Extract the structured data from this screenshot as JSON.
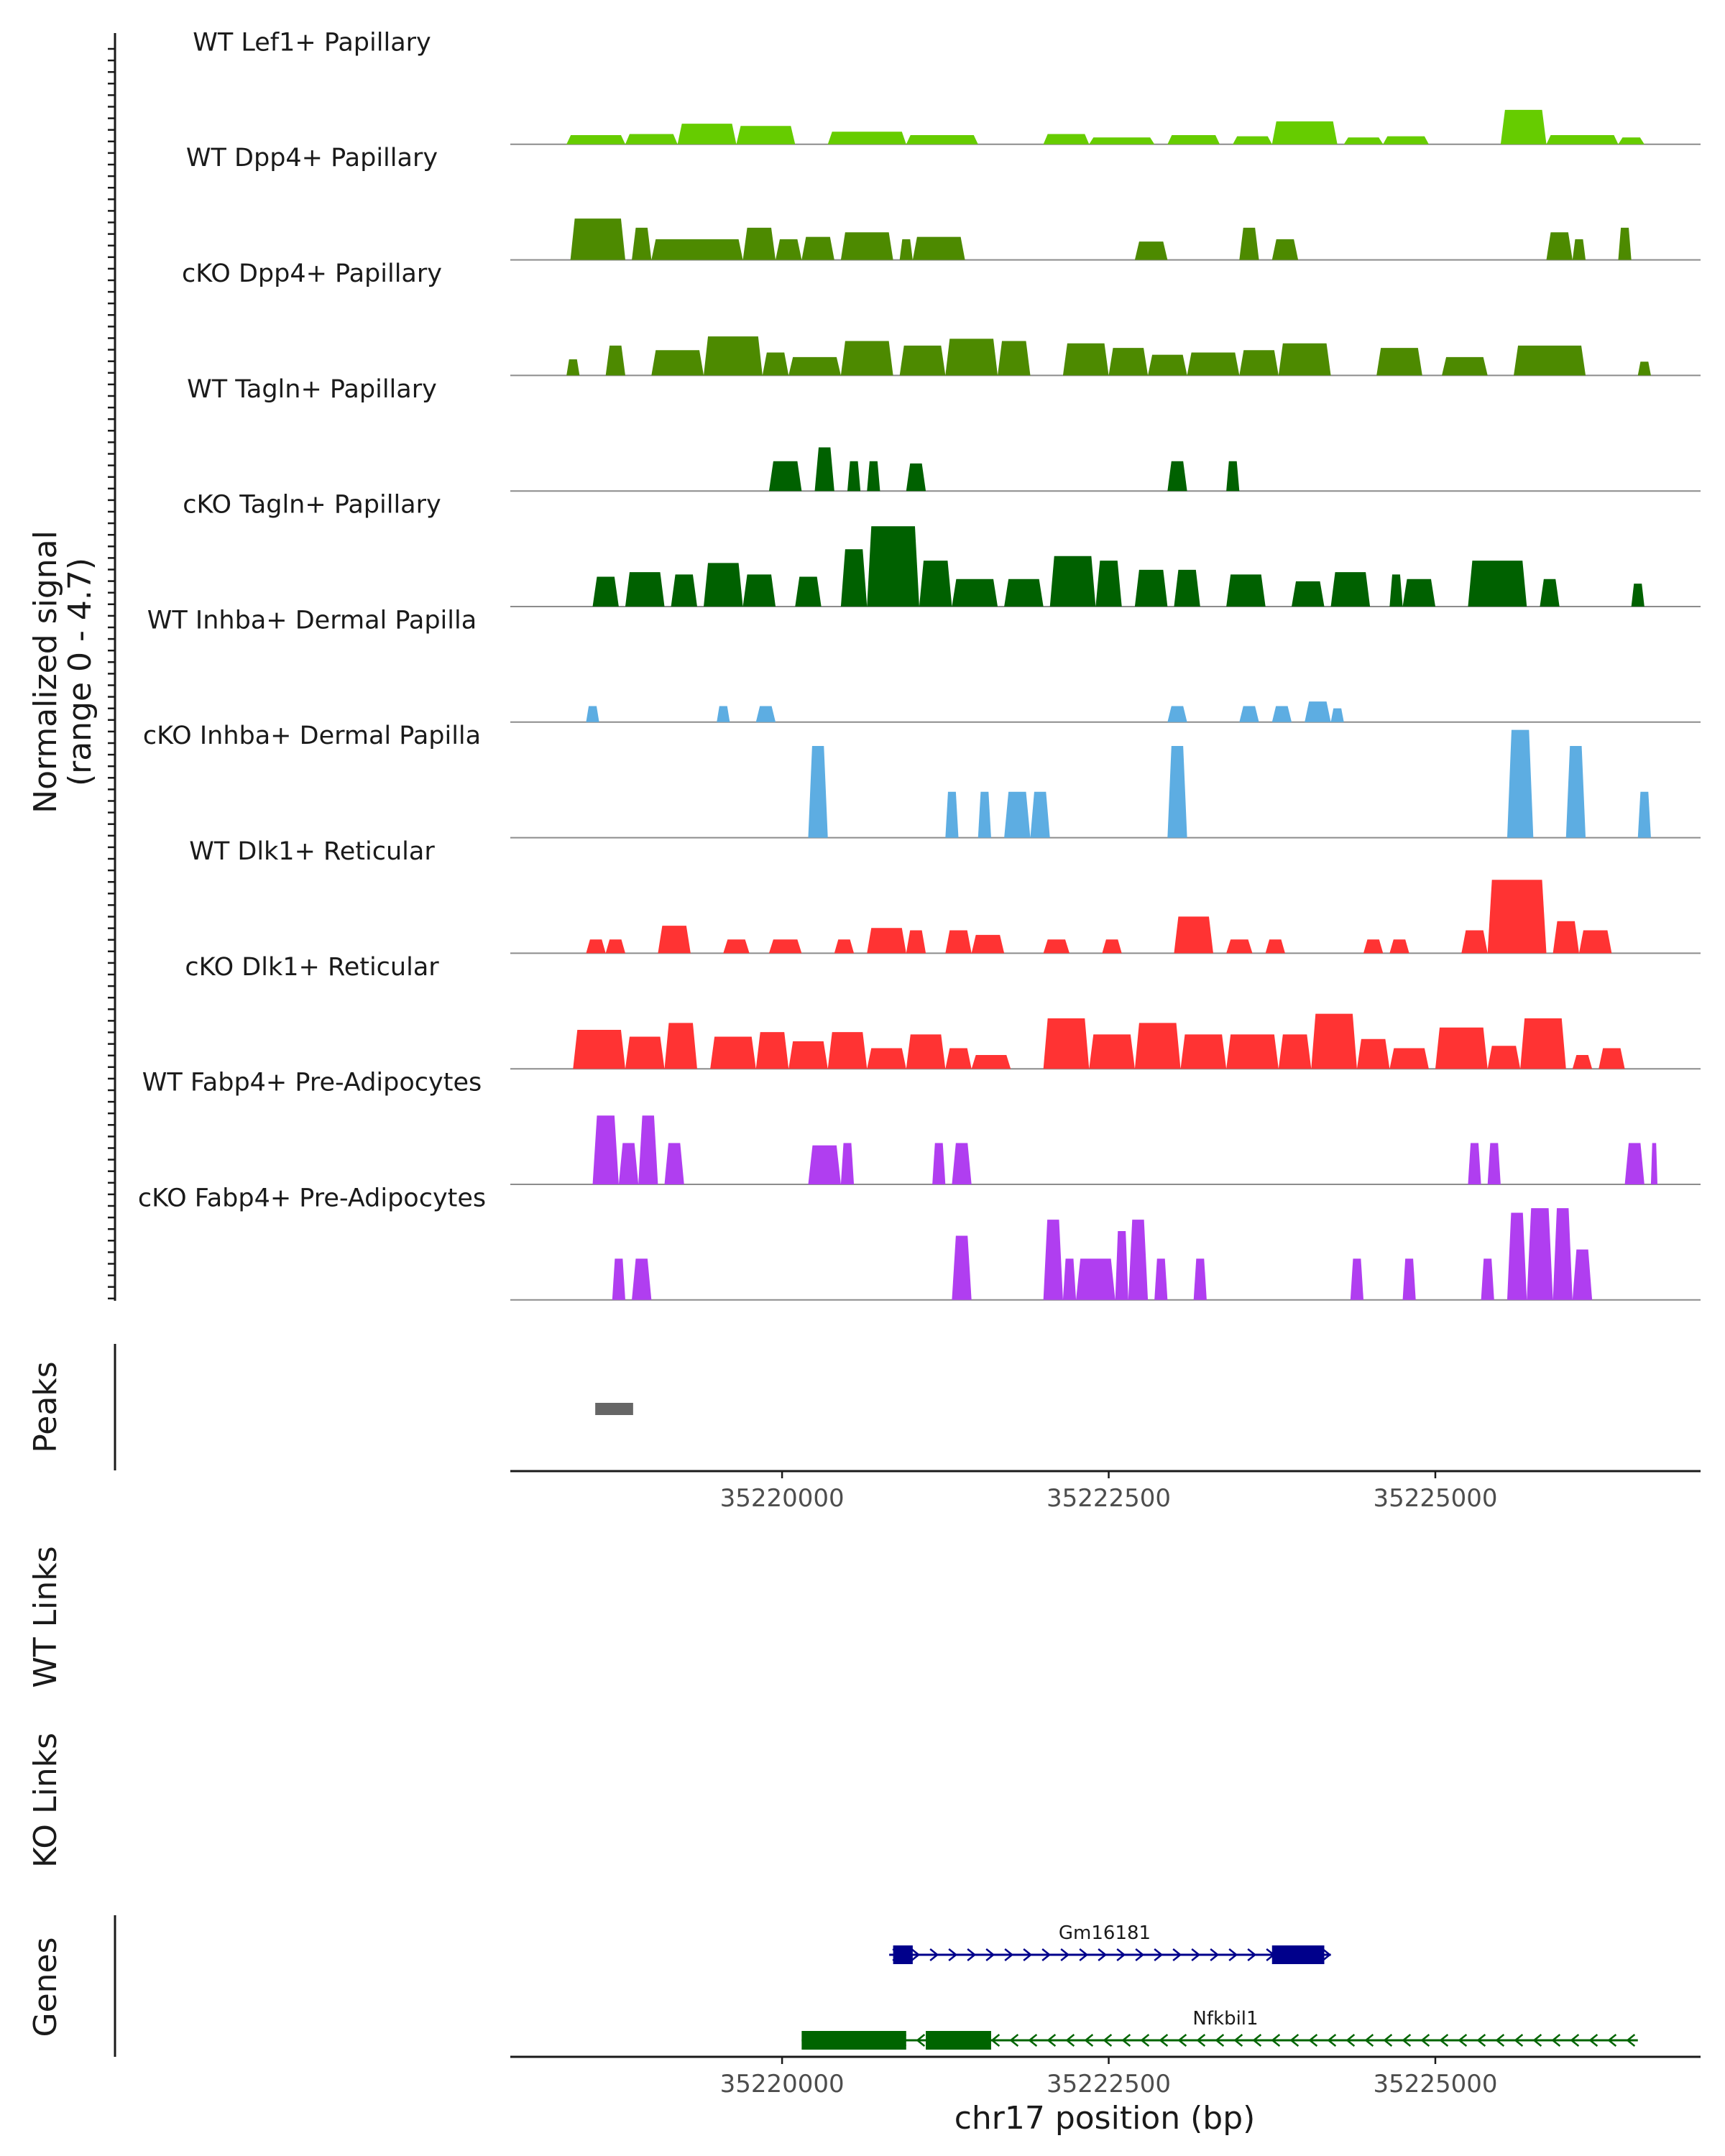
{
  "chart_data": {
    "type": "area",
    "title": "",
    "signal_ylabel": [
      "Normalized signal",
      "(range 0 - 4.7)"
    ],
    "signal_range": [
      0,
      4.7
    ],
    "xlabel": "chr17 position (bp)",
    "xlim": [
      35217920,
      35227030
    ],
    "x_ticks": [
      35220000,
      35222500,
      35225000
    ],
    "x_tick_labels": [
      "35220000",
      "35222500",
      "35225000"
    ],
    "tracks": [
      {
        "name": "WT Lef1+ Papillary",
        "color": "#66cc00",
        "regions": [
          [
            35218350,
            35218800,
            0.4
          ],
          [
            35218800,
            35219200,
            0.45
          ],
          [
            35219200,
            35219650,
            0.9
          ],
          [
            35219650,
            35220100,
            0.8
          ],
          [
            35220350,
            35220950,
            0.55
          ],
          [
            35220950,
            35221500,
            0.4
          ],
          [
            35222000,
            35222350,
            0.45
          ],
          [
            35222350,
            35222850,
            0.3
          ],
          [
            35222950,
            35223350,
            0.4
          ],
          [
            35223450,
            35223750,
            0.35
          ],
          [
            35223750,
            35224250,
            1.0
          ],
          [
            35224300,
            35224600,
            0.3
          ],
          [
            35224600,
            35224950,
            0.35
          ],
          [
            35225500,
            35225850,
            1.5
          ],
          [
            35225850,
            35226400,
            0.4
          ],
          [
            35226400,
            35226600,
            0.3
          ]
        ]
      },
      {
        "name": "WT Dpp4+ Papillary",
        "color": "#4d8a00",
        "regions": [
          [
            35218380,
            35218800,
            1.8
          ],
          [
            35218850,
            35219000,
            1.4
          ],
          [
            35219000,
            35219700,
            0.9
          ],
          [
            35219700,
            35219950,
            1.4
          ],
          [
            35219950,
            35220150,
            0.9
          ],
          [
            35220150,
            35220400,
            1.0
          ],
          [
            35220450,
            35220850,
            1.2
          ],
          [
            35220900,
            35221000,
            0.9
          ],
          [
            35221000,
            35221400,
            1.0
          ],
          [
            35222700,
            35222950,
            0.8
          ],
          [
            35223500,
            35223650,
            1.4
          ],
          [
            35223750,
            35223950,
            0.9
          ],
          [
            35225850,
            35226050,
            1.2
          ],
          [
            35226050,
            35226150,
            0.9
          ],
          [
            35226400,
            35226500,
            1.4
          ]
        ]
      },
      {
        "name": "cKO Dpp4+ Papillary",
        "color": "#4d8a00",
        "regions": [
          [
            35218350,
            35218450,
            0.7
          ],
          [
            35218650,
            35218800,
            1.3
          ],
          [
            35219000,
            35219400,
            1.1
          ],
          [
            35219400,
            35219850,
            1.7
          ],
          [
            35219850,
            35220050,
            1.0
          ],
          [
            35220050,
            35220450,
            0.8
          ],
          [
            35220450,
            35220850,
            1.5
          ],
          [
            35220900,
            35221250,
            1.3
          ],
          [
            35221250,
            35221650,
            1.6
          ],
          [
            35221650,
            35221900,
            1.5
          ],
          [
            35222150,
            35222500,
            1.4
          ],
          [
            35222500,
            35222800,
            1.2
          ],
          [
            35222800,
            35223100,
            0.9
          ],
          [
            35223100,
            35223500,
            1.0
          ],
          [
            35223500,
            35223800,
            1.1
          ],
          [
            35223800,
            35224200,
            1.4
          ],
          [
            35224550,
            35224900,
            1.2
          ],
          [
            35225050,
            35225400,
            0.8
          ],
          [
            35225600,
            35226150,
            1.3
          ],
          [
            35226550,
            35226650,
            0.6
          ]
        ]
      },
      {
        "name": "WT Tagln+ Papillary",
        "color": "#006100",
        "regions": [
          [
            35219900,
            35220150,
            1.3
          ],
          [
            35220250,
            35220400,
            1.9
          ],
          [
            35220500,
            35220600,
            1.3
          ],
          [
            35220650,
            35220750,
            1.3
          ],
          [
            35220950,
            35221100,
            1.2
          ],
          [
            35222950,
            35223100,
            1.3
          ],
          [
            35223400,
            35223500,
            1.3
          ]
        ]
      },
      {
        "name": "cKO Tagln+ Papillary",
        "color": "#006100",
        "regions": [
          [
            35218550,
            35218750,
            1.3
          ],
          [
            35218800,
            35219100,
            1.5
          ],
          [
            35219150,
            35219350,
            1.4
          ],
          [
            35219400,
            35219700,
            1.9
          ],
          [
            35219700,
            35219950,
            1.4
          ],
          [
            35220100,
            35220300,
            1.3
          ],
          [
            35220450,
            35220650,
            2.5
          ],
          [
            35220650,
            35221050,
            3.5
          ],
          [
            35221050,
            35221300,
            2.0
          ],
          [
            35221300,
            35221650,
            1.2
          ],
          [
            35221700,
            35222000,
            1.2
          ],
          [
            35222050,
            35222400,
            2.2
          ],
          [
            35222400,
            35222600,
            2.0
          ],
          [
            35222700,
            35222950,
            1.6
          ],
          [
            35223000,
            35223200,
            1.6
          ],
          [
            35223400,
            35223700,
            1.4
          ],
          [
            35223900,
            35224150,
            1.1
          ],
          [
            35224200,
            35224500,
            1.5
          ],
          [
            35224650,
            35224750,
            1.4
          ],
          [
            35224750,
            35225000,
            1.2
          ],
          [
            35225250,
            35225700,
            2.0
          ],
          [
            35225800,
            35225950,
            1.2
          ],
          [
            35226500,
            35226600,
            1.0
          ]
        ]
      },
      {
        "name": "WT Inhba+ Dermal Papilla",
        "color": "#5dade2",
        "regions": [
          [
            35218500,
            35218600,
            0.7
          ],
          [
            35219500,
            35219600,
            0.7
          ],
          [
            35219800,
            35219950,
            0.7
          ],
          [
            35222950,
            35223100,
            0.7
          ],
          [
            35223500,
            35223650,
            0.7
          ],
          [
            35223750,
            35223900,
            0.7
          ],
          [
            35224000,
            35224200,
            0.9
          ],
          [
            35224200,
            35224300,
            0.6
          ]
        ]
      },
      {
        "name": "cKO Inhba+ Dermal Papilla",
        "color": "#5dade2",
        "regions": [
          [
            35220200,
            35220350,
            4.0
          ],
          [
            35221250,
            35221350,
            2.0
          ],
          [
            35221500,
            35221600,
            2.0
          ],
          [
            35221700,
            35221900,
            2.0
          ],
          [
            35221900,
            35222050,
            2.0
          ],
          [
            35222950,
            35223100,
            4.0
          ],
          [
            35225550,
            35225750,
            4.7
          ],
          [
            35226000,
            35226150,
            4.0
          ],
          [
            35226550,
            35226650,
            2.0
          ]
        ]
      },
      {
        "name": "WT Dlk1+ Reticular",
        "color": "#ff3333",
        "regions": [
          [
            35218500,
            35218650,
            0.6
          ],
          [
            35218650,
            35218800,
            0.6
          ],
          [
            35219050,
            35219300,
            1.2
          ],
          [
            35219550,
            35219750,
            0.6
          ],
          [
            35219900,
            35220150,
            0.6
          ],
          [
            35220400,
            35220550,
            0.6
          ],
          [
            35220650,
            35220950,
            1.1
          ],
          [
            35220950,
            35221100,
            1.0
          ],
          [
            35221250,
            35221450,
            1.0
          ],
          [
            35221450,
            35221700,
            0.8
          ],
          [
            35222000,
            35222200,
            0.6
          ],
          [
            35222450,
            35222600,
            0.6
          ],
          [
            35223000,
            35223300,
            1.6
          ],
          [
            35223400,
            35223600,
            0.6
          ],
          [
            35223700,
            35223850,
            0.6
          ],
          [
            35224450,
            35224600,
            0.6
          ],
          [
            35224650,
            35224800,
            0.6
          ],
          [
            35225200,
            35225400,
            1.0
          ],
          [
            35225400,
            35225850,
            3.2
          ],
          [
            35225900,
            35226100,
            1.4
          ],
          [
            35226100,
            35226350,
            1.0
          ]
        ]
      },
      {
        "name": "cKO Dlk1+ Reticular",
        "color": "#ff3333",
        "regions": [
          [
            35218400,
            35218800,
            1.7
          ],
          [
            35218800,
            35219100,
            1.4
          ],
          [
            35219100,
            35219350,
            2.0
          ],
          [
            35219450,
            35219800,
            1.4
          ],
          [
            35219800,
            35220050,
            1.6
          ],
          [
            35220050,
            35220350,
            1.2
          ],
          [
            35220350,
            35220650,
            1.6
          ],
          [
            35220650,
            35220950,
            0.9
          ],
          [
            35220950,
            35221250,
            1.5
          ],
          [
            35221250,
            35221450,
            0.9
          ],
          [
            35221450,
            35221750,
            0.6
          ],
          [
            35222000,
            35222350,
            2.2
          ],
          [
            35222350,
            35222700,
            1.5
          ],
          [
            35222700,
            35223050,
            2.0
          ],
          [
            35223050,
            35223400,
            1.5
          ],
          [
            35223400,
            35223800,
            1.5
          ],
          [
            35223800,
            35224050,
            1.5
          ],
          [
            35224050,
            35224400,
            2.4
          ],
          [
            35224400,
            35224650,
            1.3
          ],
          [
            35224650,
            35224950,
            0.9
          ],
          [
            35225000,
            35225400,
            1.8
          ],
          [
            35225400,
            35225650,
            1.0
          ],
          [
            35225650,
            35226000,
            2.2
          ],
          [
            35226050,
            35226200,
            0.6
          ],
          [
            35226250,
            35226450,
            0.9
          ]
        ]
      },
      {
        "name": "WT Fabp4+ Pre-Adipocytes",
        "color": "#b03ef0",
        "regions": [
          [
            35218550,
            35218750,
            3.0
          ],
          [
            35218750,
            35218900,
            1.8
          ],
          [
            35218900,
            35219050,
            3.0
          ],
          [
            35219100,
            35219250,
            1.8
          ],
          [
            35220200,
            35220450,
            1.7
          ],
          [
            35220450,
            35220550,
            1.8
          ],
          [
            35221150,
            35221250,
            1.8
          ],
          [
            35221300,
            35221450,
            1.8
          ],
          [
            35225250,
            35225350,
            1.8
          ],
          [
            35225400,
            35225500,
            1.8
          ],
          [
            35226450,
            35226600,
            1.8
          ],
          [
            35226650,
            35226700,
            1.8
          ]
        ]
      },
      {
        "name": "cKO Fabp4+ Pre-Adipocytes",
        "color": "#b03ef0",
        "regions": [
          [
            35218700,
            35218800,
            1.8
          ],
          [
            35218850,
            35219000,
            1.8
          ],
          [
            35221300,
            35221450,
            2.8
          ],
          [
            35222000,
            35222150,
            3.5
          ],
          [
            35222150,
            35222250,
            1.8
          ],
          [
            35222250,
            35222550,
            1.8
          ],
          [
            35222550,
            35222650,
            3.0
          ],
          [
            35222650,
            35222800,
            3.5
          ],
          [
            35222850,
            35222950,
            1.8
          ],
          [
            35223150,
            35223250,
            1.8
          ],
          [
            35224350,
            35224450,
            1.8
          ],
          [
            35224750,
            35224850,
            1.8
          ],
          [
            35225350,
            35225450,
            1.8
          ],
          [
            35225550,
            35225700,
            3.8
          ],
          [
            35225700,
            35225900,
            4.0
          ],
          [
            35225900,
            35226050,
            4.0
          ],
          [
            35226050,
            35226200,
            2.2
          ]
        ]
      }
    ],
    "panels": {
      "peaks": {
        "label": "Peaks",
        "regions": [
          [
            35218570,
            35218860
          ]
        ],
        "color": "#666666"
      },
      "wt_links": {
        "label": "WT Links"
      },
      "ko_links": {
        "label": "KO Links"
      },
      "genes": {
        "label": "Genes",
        "items": [
          {
            "name": "Gm16181",
            "start": 35220820,
            "end": 35224200,
            "strand": "+",
            "color": "#00008b",
            "exons": [
              [
                35220850,
                35221000
              ],
              [
                35223750,
                35224150
              ]
            ]
          },
          {
            "name": "Nfkbil1",
            "start": 35220150,
            "end": 35226550,
            "strand": "-",
            "color": "#006400",
            "exons": [
              [
                35220150,
                35220950
              ],
              [
                35221100,
                35221600
              ]
            ]
          }
        ]
      }
    }
  }
}
